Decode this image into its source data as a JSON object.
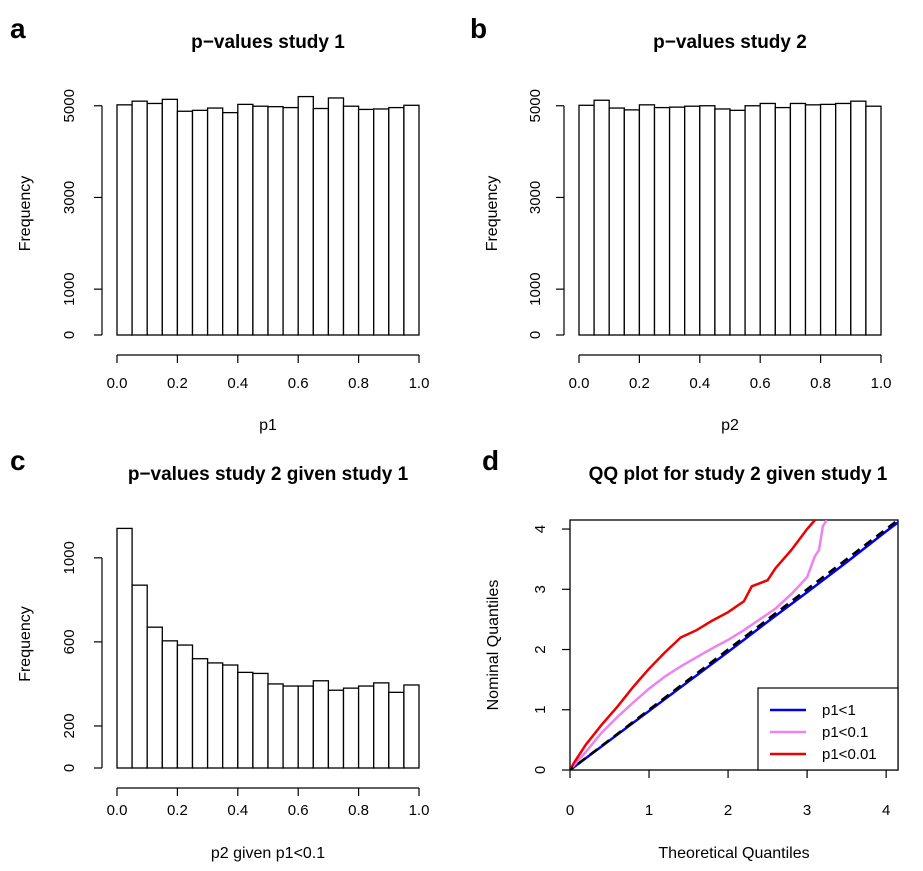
{
  "figure": {
    "panels": [
      {
        "letter": "a",
        "title": "p−values study 1",
        "xlabel": "p1",
        "ylabel": "Frequency"
      },
      {
        "letter": "b",
        "title": "p−values study 2",
        "xlabel": "p2",
        "ylabel": "Frequency"
      },
      {
        "letter": "c",
        "title": "p−values study 2 given study 1",
        "xlabel": "p2 given p1<0.1",
        "ylabel": "Frequency"
      },
      {
        "letter": "d",
        "title": "QQ plot for study 2 given study 1",
        "xlabel": "Theoretical Quantiles",
        "ylabel": "Nominal Quantiles"
      }
    ]
  },
  "colors": {
    "bar_fill": "#ffffff",
    "stroke": "#000000",
    "p1_lt_1": "#0000ee",
    "p1_lt_0_1": "#ee82ee",
    "p1_lt_0_01": "#ee0000",
    "reference": "#000000"
  },
  "chart_data": [
    {
      "type": "bar",
      "title": "p−values study 1",
      "xlabel": "p1",
      "ylabel": "Frequency",
      "bin_edges": [
        0.0,
        0.05,
        0.1,
        0.15,
        0.2,
        0.25,
        0.3,
        0.35,
        0.4,
        0.45,
        0.5,
        0.55,
        0.6,
        0.65,
        0.7,
        0.75,
        0.8,
        0.85,
        0.9,
        0.95,
        1.0
      ],
      "values": [
        5020,
        5100,
        5050,
        5140,
        4880,
        4900,
        4950,
        4850,
        5030,
        4990,
        4980,
        4960,
        5200,
        4940,
        5170,
        4990,
        4920,
        4930,
        4960,
        5010
      ],
      "xlim": [
        0,
        1
      ],
      "ylim": [
        0,
        5300
      ],
      "xticks": [
        "0.0",
        "0.2",
        "0.4",
        "0.6",
        "0.8",
        "1.0"
      ],
      "yticks": [
        "0",
        "1000",
        "3000",
        "5000"
      ],
      "grid": false
    },
    {
      "type": "bar",
      "title": "p−values study 2",
      "xlabel": "p2",
      "ylabel": "Frequency",
      "bin_edges": [
        0.0,
        0.05,
        0.1,
        0.15,
        0.2,
        0.25,
        0.3,
        0.35,
        0.4,
        0.45,
        0.5,
        0.55,
        0.6,
        0.65,
        0.7,
        0.75,
        0.8,
        0.85,
        0.9,
        0.95,
        1.0
      ],
      "values": [
        5010,
        5120,
        4950,
        4910,
        5020,
        4960,
        4970,
        4990,
        5000,
        4930,
        4900,
        5000,
        5050,
        4960,
        5050,
        5020,
        5030,
        5050,
        5100,
        4990
      ],
      "xlim": [
        0,
        1
      ],
      "ylim": [
        0,
        5300
      ],
      "xticks": [
        "0.0",
        "0.2",
        "0.4",
        "0.6",
        "0.8",
        "1.0"
      ],
      "yticks": [
        "0",
        "1000",
        "3000",
        "5000"
      ],
      "grid": false
    },
    {
      "type": "bar",
      "title": "p−values study 2 given study 1",
      "xlabel": "p2 given p1<0.1",
      "ylabel": "Frequency",
      "bin_edges": [
        0.0,
        0.05,
        0.1,
        0.15,
        0.2,
        0.25,
        0.3,
        0.35,
        0.4,
        0.45,
        0.5,
        0.55,
        0.6,
        0.65,
        0.7,
        0.75,
        0.8,
        0.85,
        0.9,
        0.95,
        1.0
      ],
      "values": [
        1140,
        870,
        670,
        605,
        585,
        520,
        500,
        490,
        455,
        450,
        400,
        390,
        390,
        415,
        370,
        380,
        390,
        405,
        360,
        395
      ],
      "xlim": [
        0,
        1
      ],
      "ylim": [
        0,
        1180
      ],
      "xticks": [
        "0.0",
        "0.2",
        "0.4",
        "0.6",
        "0.8",
        "1.0"
      ],
      "yticks": [
        "0",
        "200",
        "600",
        "1000"
      ],
      "grid": false
    },
    {
      "type": "line",
      "title": "QQ plot for study 2 given study 1",
      "xlabel": "Theoretical Quantiles",
      "ylabel": "Nominal Quantiles",
      "xlim": [
        0,
        4.15
      ],
      "ylim": [
        0,
        4.15
      ],
      "xticks": [
        "0",
        "1",
        "2",
        "3",
        "4"
      ],
      "yticks": [
        "0",
        "1",
        "2",
        "3",
        "4"
      ],
      "legend_position": "bottom-right",
      "reference_line": {
        "style": "dashed",
        "x": [
          -0.2,
          4.3
        ],
        "y": [
          -0.2,
          4.3
        ]
      },
      "series": [
        {
          "name": "p1<1",
          "color": "#0000ee",
          "x": [
            0,
            0.5,
            1,
            1.5,
            2,
            2.5,
            3,
            3.5,
            4,
            4.2
          ],
          "y": [
            0,
            0.49,
            0.98,
            1.47,
            1.96,
            2.46,
            2.95,
            3.45,
            3.96,
            4.16
          ]
        },
        {
          "name": "p1<0.1",
          "color": "#ee82ee",
          "x": [
            0,
            0.05,
            0.2,
            0.4,
            0.6,
            0.8,
            1,
            1.2,
            1.4,
            1.6,
            1.8,
            2,
            2.2,
            2.4,
            2.6,
            2.8,
            3,
            3.05,
            3.1,
            3.15,
            3.2,
            3.25
          ],
          "y": [
            0,
            0.08,
            0.3,
            0.62,
            0.88,
            1.12,
            1.35,
            1.55,
            1.72,
            1.87,
            2.02,
            2.16,
            2.32,
            2.5,
            2.68,
            2.92,
            3.2,
            3.38,
            3.55,
            3.65,
            4.05,
            4.15
          ]
        },
        {
          "name": "p1<0.01",
          "color": "#ee0000",
          "x": [
            0,
            0.05,
            0.2,
            0.4,
            0.6,
            0.8,
            1,
            1.2,
            1.4,
            1.6,
            1.8,
            2,
            2.2,
            2.3,
            2.4,
            2.5,
            2.6,
            2.8,
            3,
            3.1
          ],
          "y": [
            0,
            0.12,
            0.42,
            0.75,
            1.05,
            1.38,
            1.68,
            1.95,
            2.2,
            2.32,
            2.48,
            2.62,
            2.8,
            3.05,
            3.1,
            3.15,
            3.35,
            3.65,
            4.0,
            4.15
          ]
        }
      ]
    }
  ]
}
